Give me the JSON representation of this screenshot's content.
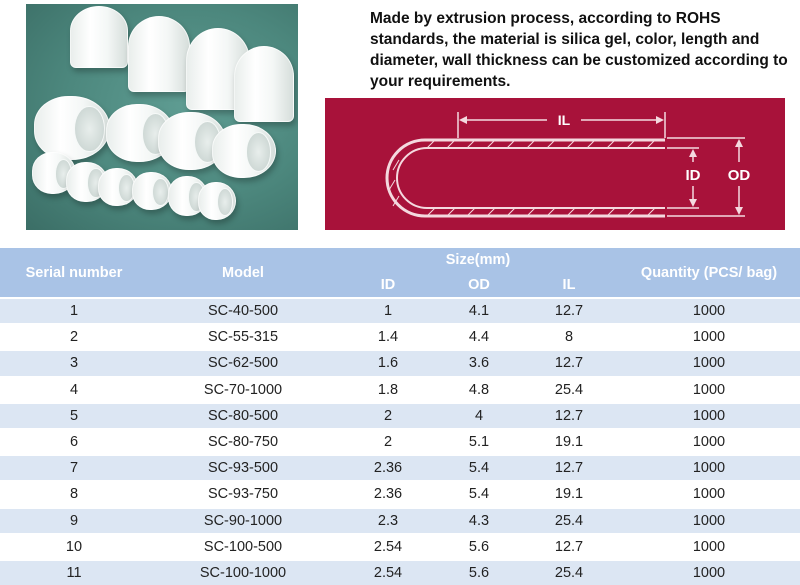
{
  "description": "Made by extrusion process, according to ROHS standards, the material is silica gel, color, length and diameter, wall thickness can be customized according to your requirements.",
  "diagram": {
    "il_label": "IL",
    "id_label": "ID",
    "od_label": "OD"
  },
  "table": {
    "headers": {
      "serial": "Serial number",
      "model": "Model",
      "size": "Size(mm)",
      "id": "ID",
      "od": "OD",
      "il": "IL",
      "quantity": "Quantity (PCS/ bag)"
    },
    "rows": [
      [
        "1",
        "SC-40-500",
        "1",
        "4.1",
        "12.7",
        "1000"
      ],
      [
        "2",
        "SC-55-315",
        "1.4",
        "4.4",
        "8",
        "1000"
      ],
      [
        "3",
        "SC-62-500",
        "1.6",
        "3.6",
        "12.7",
        "1000"
      ],
      [
        "4",
        "SC-70-1000",
        "1.8",
        "4.8",
        "25.4",
        "1000"
      ],
      [
        "5",
        "SC-80-500",
        "2",
        "4",
        "12.7",
        "1000"
      ],
      [
        "6",
        "SC-80-750",
        "2",
        "5.1",
        "19.1",
        "1000"
      ],
      [
        "7",
        "SC-93-500",
        "2.36",
        "5.4",
        "12.7",
        "1000"
      ],
      [
        "8",
        "SC-93-750",
        "2.36",
        "5.4",
        "19.1",
        "1000"
      ],
      [
        "9",
        "SC-90-1000",
        "2.3",
        "4.3",
        "25.4",
        "1000"
      ],
      [
        "10",
        "SC-100-500",
        "2.54",
        "5.6",
        "12.7",
        "1000"
      ],
      [
        "11",
        "SC-100-1000",
        "2.54",
        "5.6",
        "25.4",
        "1000"
      ]
    ]
  }
}
